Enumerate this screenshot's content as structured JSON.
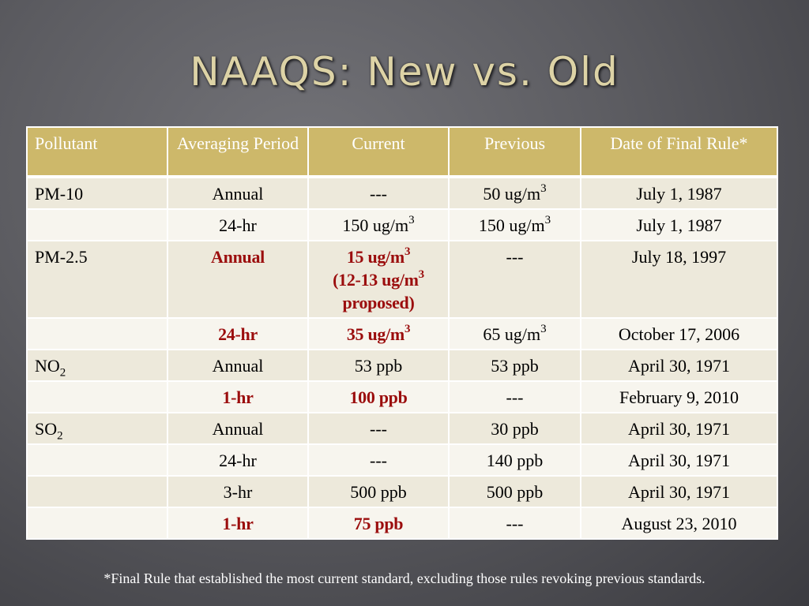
{
  "title": "NAAQS: New vs. Old",
  "table": {
    "headers": [
      "Pollutant",
      "Averaging Period",
      "Current",
      "Previous",
      "Date of Final Rule*"
    ],
    "rows": [
      {
        "pollutant": "PM-10",
        "pollutant_sub": "",
        "period": "Annual",
        "current_text": "---",
        "current_sup": "",
        "current_line2": "",
        "current_line2_sup": "",
        "current_line2_tail": "",
        "current_line3": "",
        "previous_text": "50 ug/m",
        "previous_sup": "3",
        "date": "July 1, 1987",
        "highlight": false
      },
      {
        "pollutant": "",
        "pollutant_sub": "",
        "period": "24-hr",
        "current_text": "150 ug/m",
        "current_sup": "3",
        "current_line2": "",
        "current_line2_sup": "",
        "current_line2_tail": "",
        "current_line3": "",
        "previous_text": "150 ug/m",
        "previous_sup": "3",
        "date": "July 1, 1987",
        "highlight": false
      },
      {
        "pollutant": "PM-2.5",
        "pollutant_sub": "",
        "period": "Annual",
        "current_text": "15 ug/m",
        "current_sup": "3",
        "current_line2": "(12-13 ug/m",
        "current_line2_sup": "3",
        "current_line2_tail": "",
        "current_line3": "proposed)",
        "previous_text": "---",
        "previous_sup": "",
        "date": "July 18, 1997",
        "highlight": true
      },
      {
        "pollutant": "",
        "pollutant_sub": "",
        "period": "24-hr",
        "current_text": "35 ug/m",
        "current_sup": "3",
        "current_line2": "",
        "current_line2_sup": "",
        "current_line2_tail": "",
        "current_line3": "",
        "previous_text": "65 ug/m",
        "previous_sup": "3",
        "date": "October 17, 2006",
        "highlight": true
      },
      {
        "pollutant": "NO",
        "pollutant_sub": "2",
        "period": "Annual",
        "current_text": "53 ppb",
        "current_sup": "",
        "current_line2": "",
        "current_line2_sup": "",
        "current_line2_tail": "",
        "current_line3": "",
        "previous_text": "53 ppb",
        "previous_sup": "",
        "date": "April 30, 1971",
        "highlight": false
      },
      {
        "pollutant": "",
        "pollutant_sub": "",
        "period": "1-hr",
        "current_text": "100 ppb",
        "current_sup": "",
        "current_line2": "",
        "current_line2_sup": "",
        "current_line2_tail": "",
        "current_line3": "",
        "previous_text": "---",
        "previous_sup": "",
        "date": "February 9, 2010",
        "highlight": true
      },
      {
        "pollutant": "SO",
        "pollutant_sub": "2",
        "period": "Annual",
        "current_text": "---",
        "current_sup": "",
        "current_line2": "",
        "current_line2_sup": "",
        "current_line2_tail": "",
        "current_line3": "",
        "previous_text": "30 ppb",
        "previous_sup": "",
        "date": "April 30, 1971",
        "highlight": false
      },
      {
        "pollutant": "",
        "pollutant_sub": "",
        "period": "24-hr",
        "current_text": "---",
        "current_sup": "",
        "current_line2": "",
        "current_line2_sup": "",
        "current_line2_tail": "",
        "current_line3": "",
        "previous_text": "140 ppb",
        "previous_sup": "",
        "date": "April 30, 1971",
        "highlight": false
      },
      {
        "pollutant": "",
        "pollutant_sub": "",
        "period": "3-hr",
        "current_text": "500 ppb",
        "current_sup": "",
        "current_line2": "",
        "current_line2_sup": "",
        "current_line2_tail": "",
        "current_line3": "",
        "previous_text": "500 ppb",
        "previous_sup": "",
        "date": "April 30, 1971",
        "highlight": false
      },
      {
        "pollutant": "",
        "pollutant_sub": "",
        "period": "1-hr",
        "current_text": "75 ppb",
        "current_sup": "",
        "current_line2": "",
        "current_line2_sup": "",
        "current_line2_tail": "",
        "current_line3": "",
        "previous_text": "---",
        "previous_sup": "",
        "date": "August 23, 2010",
        "highlight": true
      }
    ]
  },
  "footnote": "*Final Rule that established the most current standard, excluding those rules revoking previous standards.",
  "colors": {
    "title": "#ddd3a6",
    "header_bg": "#cdb86a",
    "row_odd": "#ede9db",
    "row_even": "#f7f5ee",
    "highlight_text": "#9b0d0d"
  }
}
